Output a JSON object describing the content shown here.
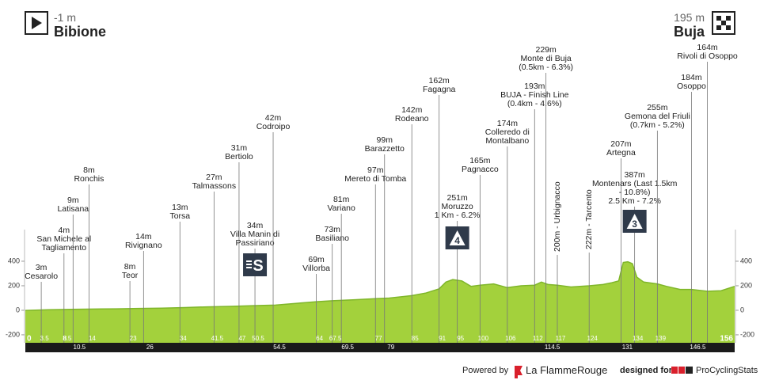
{
  "header": {
    "start_alt": "-1 m",
    "start": "Bibione",
    "finish_alt": "195 m",
    "finish": "Buja"
  },
  "footer": {
    "powered": "Powered by",
    "brand": "La FlammeRouge",
    "designed": "designed for",
    "site": "ProCyclingStats"
  },
  "chart_data": {
    "type": "area",
    "color": "#a3d13c",
    "line_color": "#7fb62a",
    "xlim": [
      0,
      156
    ],
    "ylim": [
      -265,
      658
    ],
    "yticks": [
      -200,
      0,
      200,
      400
    ],
    "x": [
      0,
      5,
      10,
      15,
      20,
      25,
      30,
      35,
      40,
      45,
      50,
      55,
      60,
      64,
      67.5,
      72,
      77,
      80,
      85,
      88,
      91,
      92.5,
      94,
      96,
      98,
      100,
      103,
      106,
      109,
      112,
      113.5,
      115,
      117,
      120,
      124,
      127,
      129,
      130.5,
      131.5,
      132.5,
      133.5,
      134.5,
      136,
      139,
      141,
      144,
      146.5,
      150,
      153,
      156
    ],
    "values": [
      -1,
      5,
      8,
      10,
      12,
      15,
      18,
      22,
      28,
      32,
      38,
      42,
      58,
      70,
      78,
      85,
      95,
      100,
      120,
      140,
      175,
      230,
      250,
      240,
      195,
      205,
      215,
      185,
      200,
      205,
      230,
      210,
      205,
      190,
      200,
      210,
      225,
      240,
      390,
      395,
      380,
      270,
      230,
      215,
      195,
      170,
      170,
      155,
      160,
      195
    ],
    "distance_ticks": [
      0,
      3.5,
      8,
      8.5,
      14,
      23,
      34,
      41.5,
      47,
      50.5,
      64,
      67.5,
      77,
      85,
      91,
      95,
      100,
      106,
      112,
      117,
      124,
      134,
      139,
      156
    ],
    "distance_ticks_lower": [
      10.5,
      26,
      54.5,
      69.5,
      79,
      114.5,
      131,
      146.5
    ],
    "climbs": [
      {
        "km": 50.5,
        "label": "S"
      },
      {
        "km": 95,
        "label": "4"
      },
      {
        "km": 134,
        "label": "3"
      }
    ],
    "waypoints": [
      {
        "km": 3.5,
        "alt": "3m",
        "label": [
          "Cesarolo"
        ]
      },
      {
        "km": 8.5,
        "alt": "4m",
        "label": [
          "San Michele al",
          "Tagliamento"
        ]
      },
      {
        "km": 10.5,
        "alt": "9m",
        "label": [
          "Latisana"
        ]
      },
      {
        "km": 14,
        "alt": "8m",
        "label": [
          "Ronchis"
        ]
      },
      {
        "km": 23,
        "alt": "8m",
        "label": [
          "Teor"
        ]
      },
      {
        "km": 26,
        "alt": "14m",
        "label": [
          "Rivignano"
        ]
      },
      {
        "km": 34,
        "alt": "13m",
        "label": [
          "Torsa"
        ]
      },
      {
        "km": 41.5,
        "alt": "27m",
        "label": [
          "Talmassons"
        ]
      },
      {
        "km": 47,
        "alt": "31m",
        "label": [
          "Bertiolo"
        ]
      },
      {
        "km": 50.5,
        "alt": "34m",
        "label": [
          "Villa Manin di",
          "Passiriano"
        ]
      },
      {
        "km": 54.5,
        "alt": "42m",
        "label": [
          "Codroipo"
        ]
      },
      {
        "km": 64,
        "alt": "69m",
        "label": [
          "Villorba"
        ]
      },
      {
        "km": 67.5,
        "alt": "73m",
        "label": [
          "Basiliano"
        ]
      },
      {
        "km": 69.5,
        "alt": "81m",
        "label": [
          "Variano"
        ]
      },
      {
        "km": 77,
        "alt": "97m",
        "label": [
          "Mereto di Tomba"
        ]
      },
      {
        "km": 79,
        "alt": "99m",
        "label": [
          "Barazzetto"
        ]
      },
      {
        "km": 85,
        "alt": "142m",
        "label": [
          "Rodeano"
        ]
      },
      {
        "km": 91,
        "alt": "162m",
        "label": [
          "Fagagna"
        ]
      },
      {
        "km": 95,
        "alt": "251m",
        "label": [
          "Moruzzo",
          "1 Km - 6.2%"
        ]
      },
      {
        "km": 100,
        "alt": "165m",
        "label": [
          "Pagnacco"
        ]
      },
      {
        "km": 106,
        "alt": "174m",
        "label": [
          "Colleredo di",
          "Montalbano"
        ]
      },
      {
        "km": 112,
        "alt": "193m",
        "label": [
          "BUJA - Finish Line",
          "(0.4km - 4.6%)"
        ]
      },
      {
        "km": 114.5,
        "alt": "229m",
        "label": [
          "Monte di Buja",
          "(0.5km - 6.3%)"
        ]
      },
      {
        "km": 117,
        "alt": "200m",
        "label": [
          "Urbignacco"
        ],
        "vertical": true
      },
      {
        "km": 124,
        "alt": "222m",
        "label": [
          "Tarcento"
        ],
        "vertical": true
      },
      {
        "km": 131,
        "alt": "207m",
        "label": [
          "Artegna"
        ]
      },
      {
        "km": 134,
        "alt": "387m",
        "label": [
          "Montenars (Last 1.5km",
          "- 10.8%)",
          "2.5 Km - 7.2%"
        ]
      },
      {
        "km": 139,
        "alt": "255m",
        "label": [
          "Gemona del Friuli",
          "(0.7km - 5.2%)"
        ]
      },
      {
        "km": 146.5,
        "alt": "184m",
        "label": [
          "Osoppo"
        ]
      },
      {
        "km": 150,
        "alt": "164m",
        "label": [
          "Rivoli di Osoppo"
        ]
      }
    ]
  }
}
